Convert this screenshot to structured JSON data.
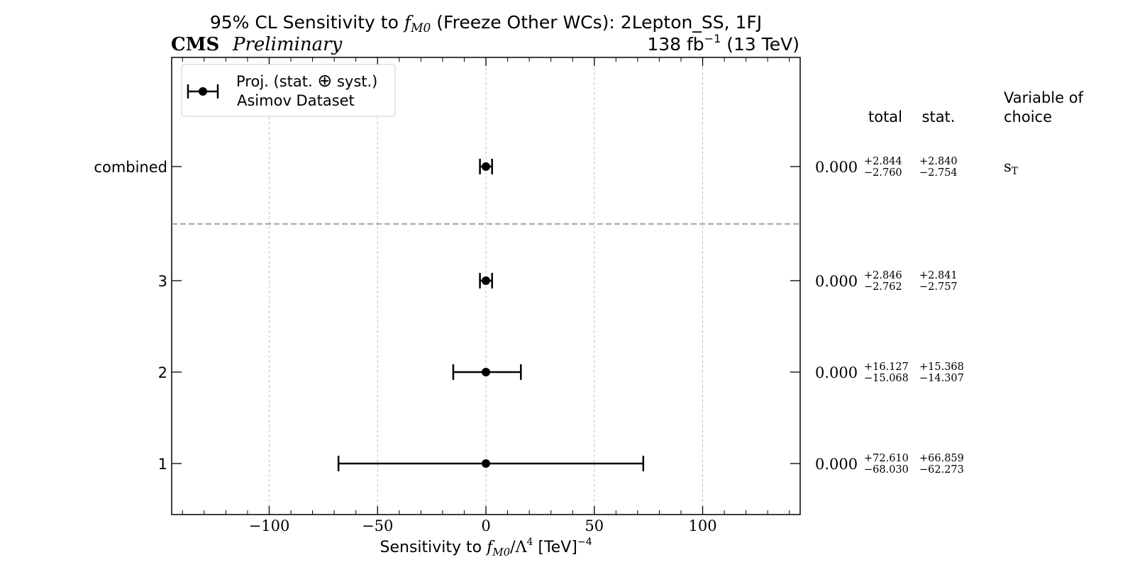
{
  "chart_data": {
    "type": "errorbar",
    "title_parts": {
      "pre": "95% CL Sensitivity to ",
      "var_main": "f",
      "var_sub": "M0",
      "post": " (Freeze Other WCs): 2Lepton_SS, 1FJ"
    },
    "cms_label": "CMS",
    "preliminary_label": "Preliminary",
    "lumi_label": {
      "main": "138 fb",
      "exp": "−1",
      "tail": " (13 TeV)"
    },
    "xlabel_parts": {
      "pre": "Sensitivity to ",
      "var_main": "f",
      "var_sub": "M0",
      "mid": "/Λ",
      "mid_exp": "4",
      "post": " [TeV]",
      "post_exp": "−4"
    },
    "xlim": [
      -145,
      145
    ],
    "xticks": [
      {
        "value": -100,
        "label": "−100"
      },
      {
        "value": -50,
        "label": "−50"
      },
      {
        "value": 0,
        "label": "0"
      },
      {
        "value": 50,
        "label": "50"
      },
      {
        "value": 100,
        "label": "100"
      }
    ],
    "grid": true,
    "legend": {
      "placement": "top-left",
      "line1_pre": "Proj. (stat. ",
      "line1_symbol": "⊕",
      "line1_post": " syst.)",
      "line2": "Asimov Dataset"
    },
    "column_headers": {
      "total": "total",
      "stat": "stat.",
      "variable": [
        "Variable of",
        "choice"
      ]
    },
    "rows": [
      {
        "label": "combined",
        "central": 0.0,
        "central_text": "0.000",
        "total_up": 2.844,
        "total_down": 2.76,
        "total_up_text": "+2.844",
        "total_down_text": "−2.760",
        "stat_up_text": "+2.840",
        "stat_down_text": "−2.754",
        "variable_main": "s",
        "variable_sub": "T"
      },
      {
        "label": "3",
        "central": 0.0,
        "central_text": "0.000",
        "total_up": 2.846,
        "total_down": 2.762,
        "total_up_text": "+2.846",
        "total_down_text": "−2.762",
        "stat_up_text": "+2.841",
        "stat_down_text": "−2.757",
        "variable_main": "",
        "variable_sub": ""
      },
      {
        "label": "2",
        "central": 0.0,
        "central_text": "0.000",
        "total_up": 16.127,
        "total_down": 15.068,
        "total_up_text": "+16.127",
        "total_down_text": "−15.068",
        "stat_up_text": "+15.368",
        "stat_down_text": "−14.307",
        "variable_main": "",
        "variable_sub": ""
      },
      {
        "label": "1",
        "central": 0.0,
        "central_text": "0.000",
        "total_up": 72.61,
        "total_down": 68.03,
        "total_up_text": "+72.610",
        "total_down_text": "−68.030",
        "stat_up_text": "+66.859",
        "stat_down_text": "−62.273",
        "variable_main": "",
        "variable_sub": ""
      }
    ]
  }
}
